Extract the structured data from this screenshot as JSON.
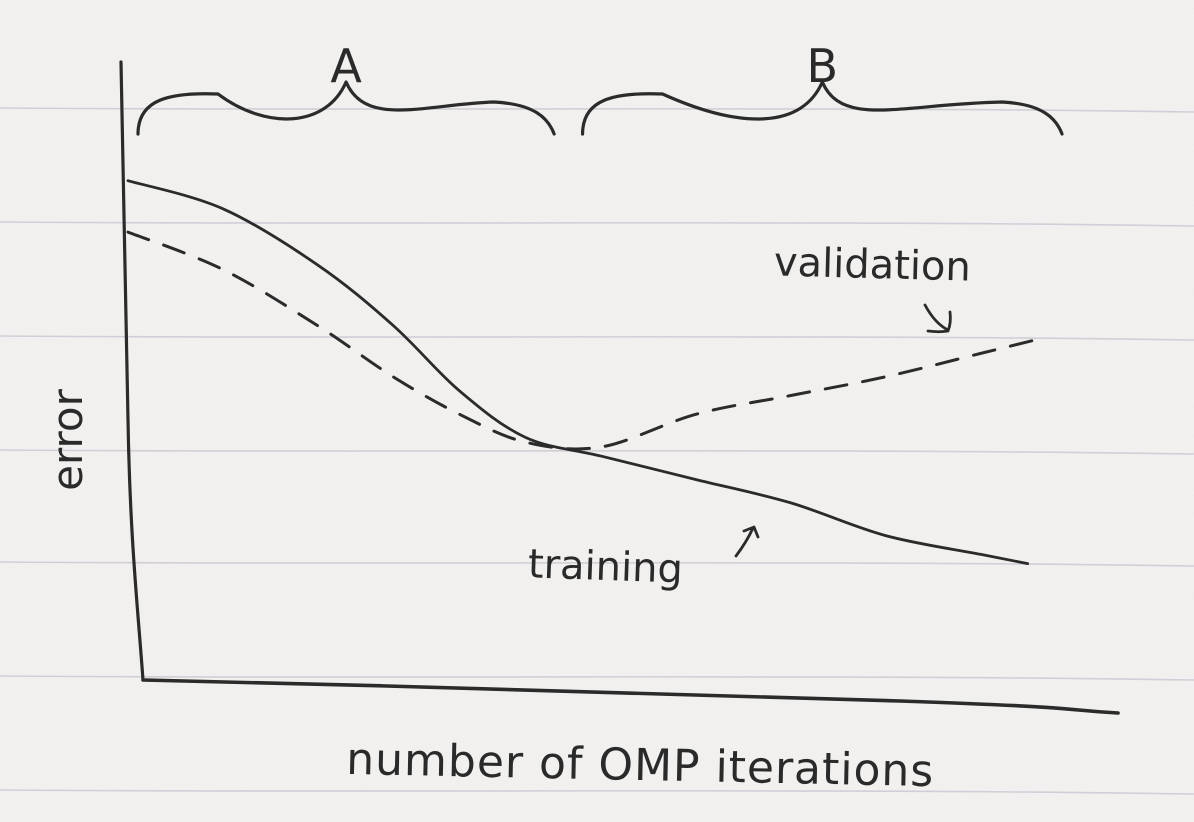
{
  "chart_data": {
    "type": "line",
    "title": "",
    "xlabel": "number of OMP iterations",
    "ylabel": "error",
    "x_ticks": false,
    "y_ticks": false,
    "grid": false,
    "xlim": [
      0,
      100
    ],
    "ylim": [
      0,
      100
    ],
    "regions": [
      {
        "label": "A",
        "x_start": 0,
        "x_end": 45
      },
      {
        "label": "B",
        "x_start": 48,
        "x_end": 98
      }
    ],
    "series": [
      {
        "name": "training",
        "style": "solid",
        "x": [
          0,
          10,
          20,
          28,
          35,
          42,
          50,
          60,
          70,
          80,
          90,
          95
        ],
        "y": [
          93,
          87,
          75,
          62,
          48,
          38,
          34,
          29,
          24,
          17,
          13,
          11
        ]
      },
      {
        "name": "validation",
        "style": "dashed",
        "x": [
          0,
          10,
          20,
          28,
          35,
          42,
          50,
          60,
          70,
          80,
          90,
          96
        ],
        "y": [
          82,
          74,
          62,
          51,
          43,
          37,
          36,
          43,
          47,
          51,
          56,
          59
        ]
      }
    ]
  },
  "colors": {
    "paper": "#f4f3f1",
    "rule_line": "#cdc8d3",
    "ink": "#2b2b2b"
  }
}
